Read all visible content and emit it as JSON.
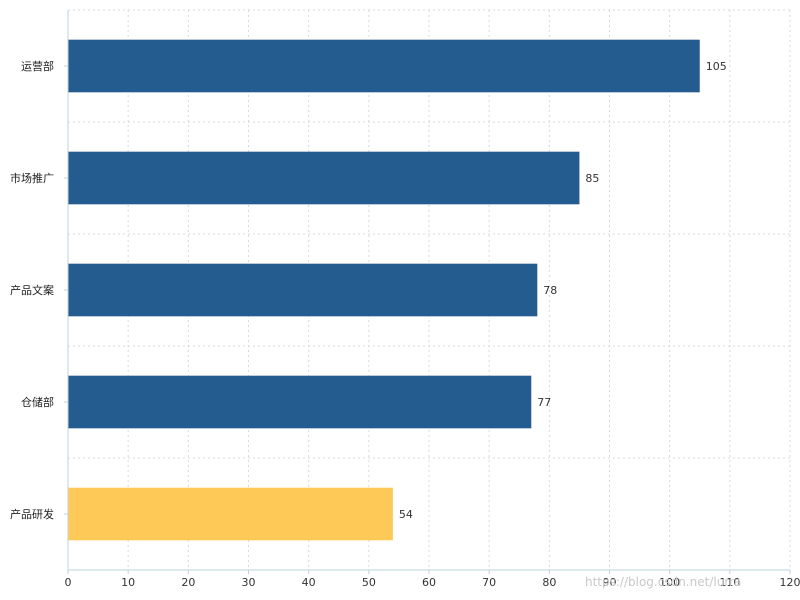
{
  "chart_data": {
    "type": "bar",
    "orientation": "horizontal",
    "categories": [
      "运营部",
      "市场推广",
      "产品文案",
      "仓储部",
      "产品研发"
    ],
    "values": [
      105,
      85,
      78,
      77,
      54
    ],
    "colors": [
      "#255c8f",
      "#255c8f",
      "#255c8f",
      "#255c8f",
      "#ffc957"
    ],
    "title": "",
    "xlabel": "",
    "ylabel": "",
    "xlim": [
      0,
      120
    ],
    "xticks": [
      0,
      10,
      20,
      30,
      40,
      50,
      60,
      70,
      80,
      90,
      100,
      110,
      120
    ],
    "grid": true,
    "legend": "none",
    "data_labels": true
  },
  "watermark": "https://blog.csdn.net/lurra"
}
